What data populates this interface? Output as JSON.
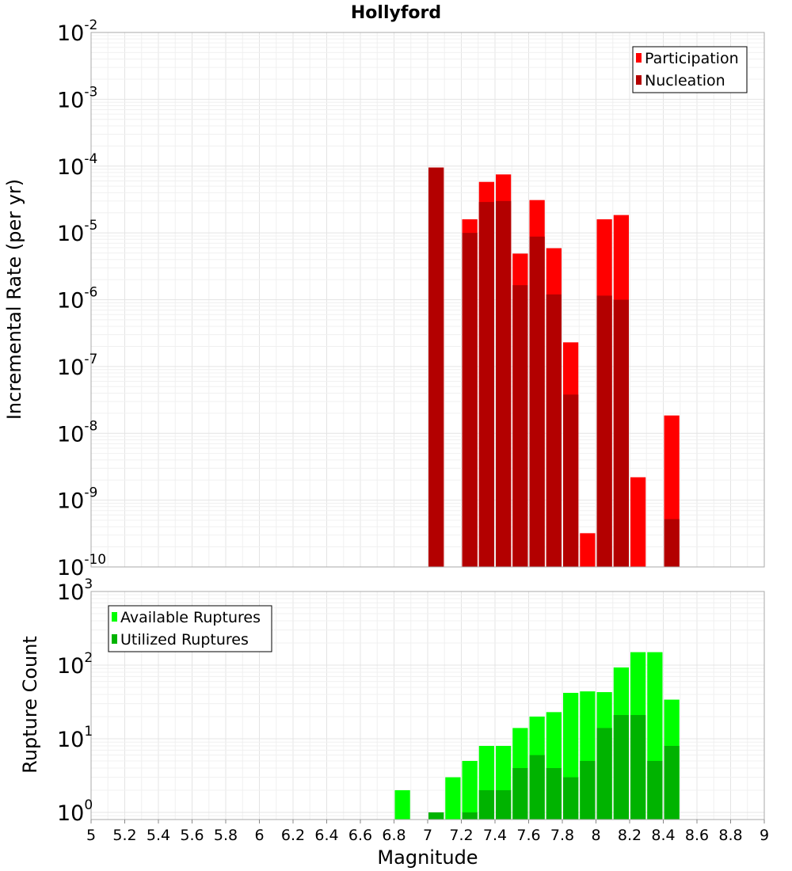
{
  "chart_data": [
    {
      "type": "bar",
      "title": "Hollyford",
      "ylabel": "Incremental Rate (per yr)",
      "xlabel": "",
      "yscale": "log",
      "ylim": [
        1e-10,
        0.01
      ],
      "xlim": [
        5,
        9
      ],
      "ytick_labels": [
        {
          "base": "10",
          "exp": "-2"
        },
        {
          "base": "10",
          "exp": "-3"
        },
        {
          "base": "10",
          "exp": "-4"
        },
        {
          "base": "10",
          "exp": "-5"
        },
        {
          "base": "10",
          "exp": "-6"
        },
        {
          "base": "10",
          "exp": "-7"
        },
        {
          "base": "10",
          "exp": "-8"
        },
        {
          "base": "10",
          "exp": "-9"
        },
        {
          "base": "10",
          "exp": "-10"
        }
      ],
      "legend": {
        "position": "top-right"
      },
      "series": [
        {
          "name": "Participation",
          "color": "#ff0000",
          "x": [
            7.05,
            7.25,
            7.35,
            7.45,
            7.55,
            7.65,
            7.75,
            7.85,
            7.95,
            8.05,
            8.15,
            8.25,
            8.45
          ],
          "values": [
            9.5e-05,
            1.6e-05,
            5.8e-05,
            7.5e-05,
            4.9e-06,
            3.1e-05,
            5.9e-06,
            2.3e-07,
            3.2e-10,
            1.6e-05,
            1.85e-05,
            2.2e-09,
            1.85e-08
          ]
        },
        {
          "name": "Nucleation",
          "color": "#b30000",
          "x": [
            7.05,
            7.25,
            7.35,
            7.45,
            7.55,
            7.65,
            7.75,
            7.85,
            8.05,
            8.15,
            8.45
          ],
          "values": [
            9.5e-05,
            1e-05,
            2.9e-05,
            3e-05,
            1.65e-06,
            8.8e-06,
            1.2e-06,
            3.8e-08,
            1.15e-06,
            1e-06,
            5.2e-10
          ]
        }
      ]
    },
    {
      "type": "bar",
      "title": "",
      "ylabel": "Rupture Count",
      "xlabel": "Magnitude",
      "yscale": "log",
      "ylim": [
        0.8,
        1000
      ],
      "xlim": [
        5,
        9
      ],
      "ytick_labels": [
        {
          "base": "10",
          "exp": "3"
        },
        {
          "base": "10",
          "exp": "2"
        },
        {
          "base": "10",
          "exp": "1"
        },
        {
          "base": "10",
          "exp": "0"
        }
      ],
      "xtick_labels": [
        "5",
        "5.2",
        "5.4",
        "5.6",
        "5.8",
        "6",
        "6.2",
        "6.4",
        "6.6",
        "6.8",
        "7",
        "7.2",
        "7.4",
        "7.6",
        "7.8",
        "8",
        "8.2",
        "8.4",
        "8.6",
        "8.8",
        "9"
      ],
      "legend": {
        "position": "top-left"
      },
      "series": [
        {
          "name": "Available Ruptures",
          "color": "#00ff00",
          "x": [
            6.85,
            7.05,
            7.15,
            7.25,
            7.35,
            7.45,
            7.55,
            7.65,
            7.75,
            7.85,
            7.95,
            8.05,
            8.15,
            8.25,
            8.35,
            8.45
          ],
          "values": [
            2,
            1,
            3,
            5,
            8,
            8,
            14,
            20,
            23,
            42,
            44,
            43,
            93,
            150,
            150,
            34
          ]
        },
        {
          "name": "Utilized Ruptures",
          "color": "#00b300",
          "x": [
            7.05,
            7.25,
            7.35,
            7.45,
            7.55,
            7.65,
            7.75,
            7.85,
            7.95,
            8.05,
            8.15,
            8.25,
            8.35,
            8.45
          ],
          "values": [
            1,
            1,
            2,
            2,
            4,
            6,
            4,
            3,
            5,
            14,
            21,
            21,
            5,
            8
          ]
        }
      ]
    }
  ]
}
